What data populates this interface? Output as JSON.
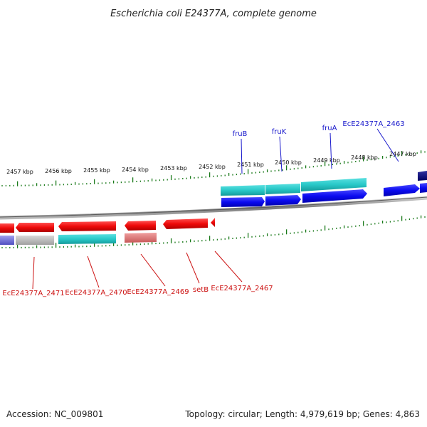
{
  "title": "Escherichia coli E24377A, complete genome",
  "footer": {
    "accession": "Accession: NC_009801",
    "topology": "Topology: circular; Length: 4,979,619 bp; Genes: 4,863"
  },
  "kbp_labels": [
    "2457 kbp",
    "2456 kbp",
    "2455 kbp",
    "2454 kbp",
    "2453 kbp",
    "2452 kbp",
    "2451 kbp",
    "2450 kbp",
    "2449 kbp",
    "2448 kbp",
    "2447 kbp"
  ],
  "gene_labels_top": [
    "fruB",
    "fruK",
    "fruA",
    "EcE24377A_2463"
  ],
  "gene_labels_bottom": [
    "EcE24377A_2471",
    "EcE24377A_2470",
    "EcE24377A_2469",
    "setB",
    "EcE24377A_2467"
  ],
  "colors": {
    "forward_cds": "#1a1aee",
    "reverse_cds": "#ee1111",
    "cog_teal": "#2bc4c4",
    "cog_grey": "#b8b8b8",
    "cog_pink": "#e27a7a",
    "cog_purple": "#7a7ad8",
    "tick": "#1a7a1a",
    "backbone": "#8a8a8a"
  }
}
